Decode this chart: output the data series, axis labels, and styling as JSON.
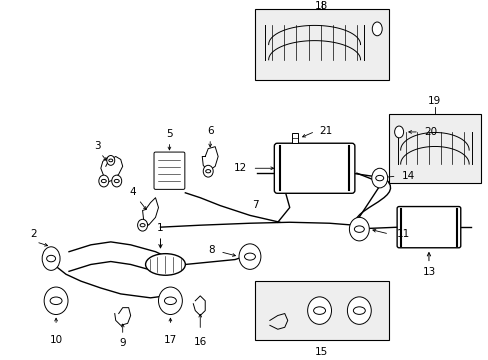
{
  "bg_color": "#ffffff",
  "fig_width": 4.89,
  "fig_height": 3.6,
  "dpi": 100,
  "image_b64": ""
}
